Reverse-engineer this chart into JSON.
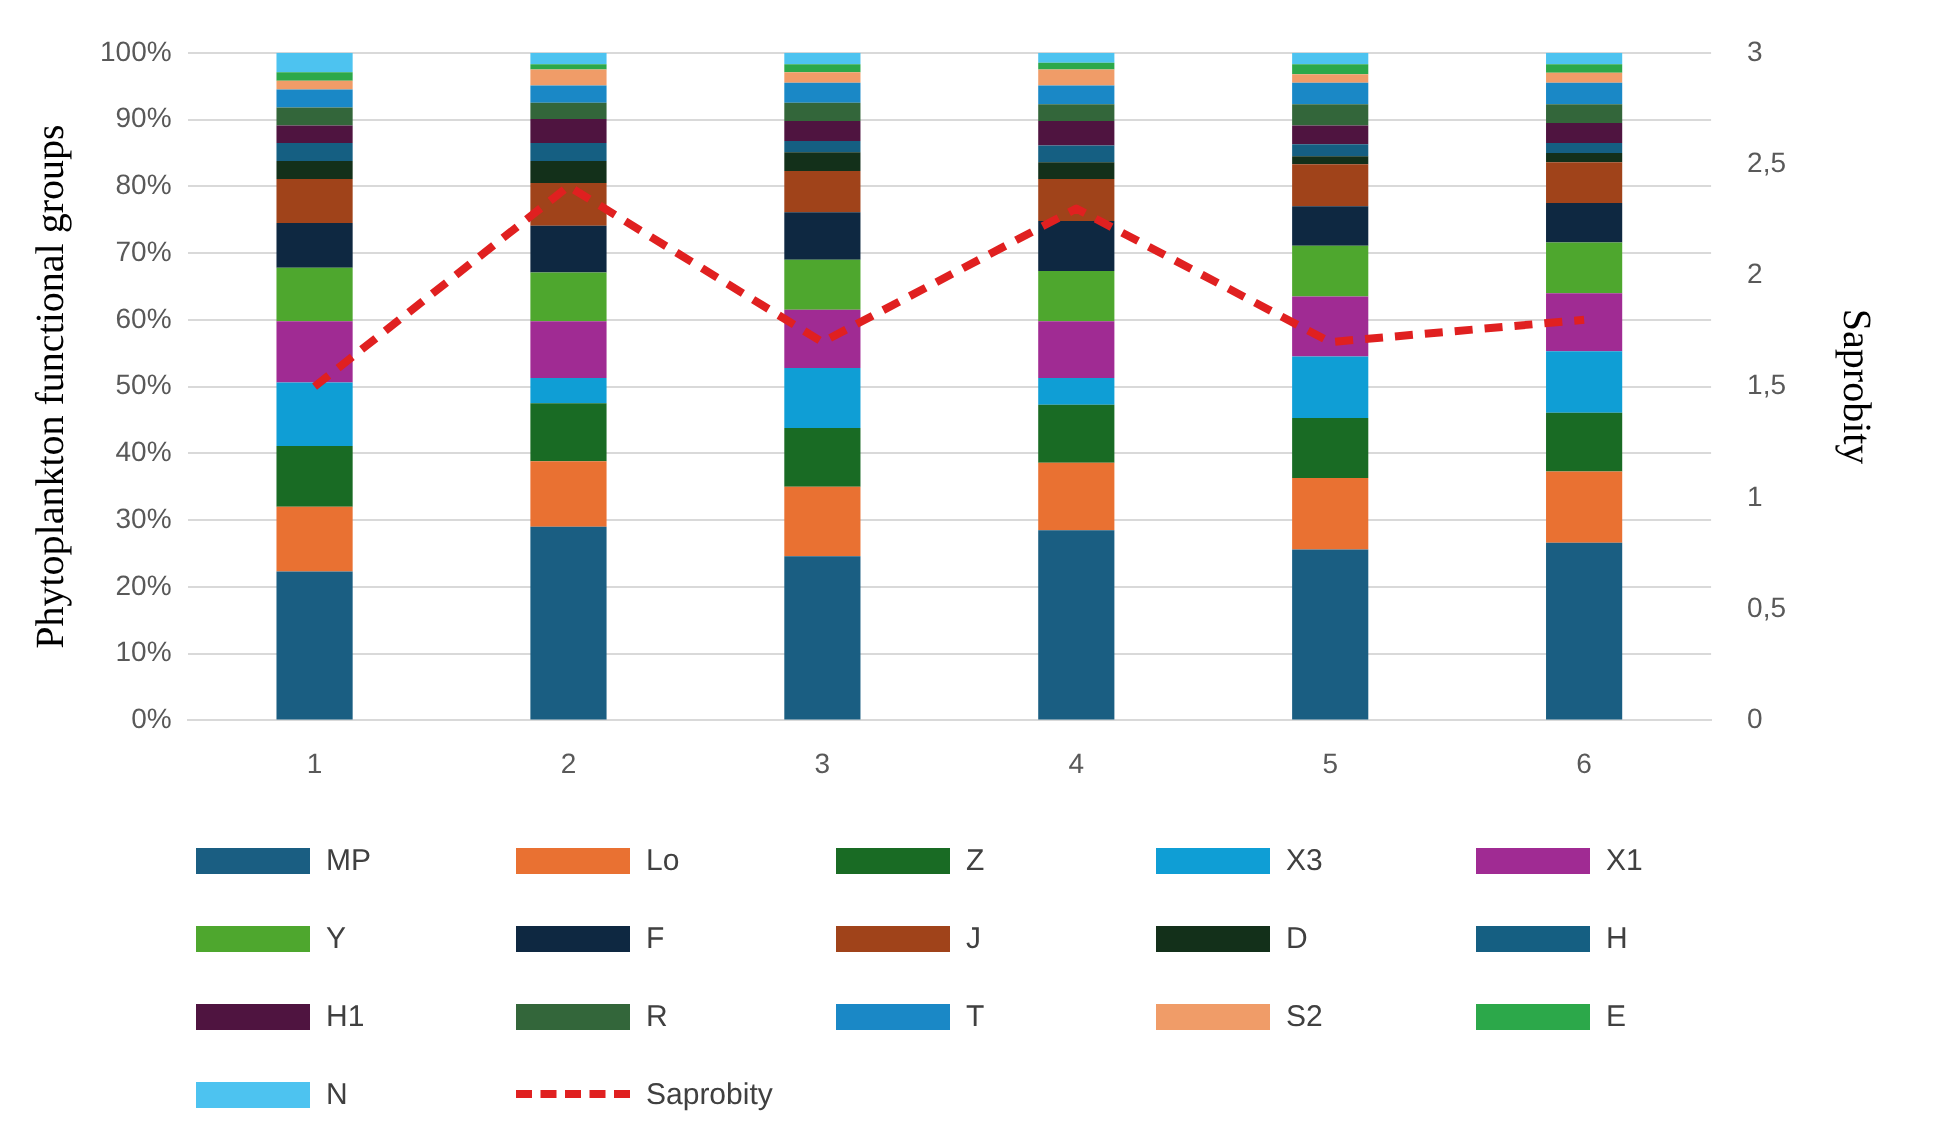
{
  "chart_data": {
    "type": "bar",
    "stacked": true,
    "categories": [
      "1",
      "2",
      "3",
      "4",
      "5",
      "6"
    ],
    "ylabel": "Phytoplankton functional groups",
    "y2label": "Saprobity",
    "ylim": [
      0,
      100
    ],
    "yticks": [
      {
        "value": 0,
        "label": "0%"
      },
      {
        "value": 10,
        "label": "10%"
      },
      {
        "value": 20,
        "label": "20%"
      },
      {
        "value": 30,
        "label": "30%"
      },
      {
        "value": 40,
        "label": "40%"
      },
      {
        "value": 50,
        "label": "50%"
      },
      {
        "value": 60,
        "label": "60%"
      },
      {
        "value": 70,
        "label": "70%"
      },
      {
        "value": 80,
        "label": "80%"
      },
      {
        "value": 90,
        "label": "90%"
      },
      {
        "value": 100,
        "label": "100%"
      }
    ],
    "y2lim": [
      0,
      3
    ],
    "y2ticks": [
      0,
      {
        "value": 0.5,
        "label": "0,5"
      },
      1,
      {
        "value": 1.5,
        "label": "1,5"
      },
      2,
      {
        "value": 2.5,
        "label": "2,5"
      },
      3
    ],
    "grid": "y",
    "legend": "bottom",
    "series": [
      {
        "name": "MP",
        "color": "#1a5e82",
        "values": [
          22.3,
          29,
          24.6,
          28.5,
          25.6,
          26.6
        ]
      },
      {
        "name": "Lo",
        "color": "#e97132",
        "values": [
          9.7,
          9.8,
          10.4,
          10.1,
          10.7,
          10.7
        ]
      },
      {
        "name": "Z",
        "color": "#196b24",
        "values": [
          9.1,
          8.7,
          8.8,
          8.7,
          9,
          8.8
        ]
      },
      {
        "name": "X3",
        "color": "#0f9ed5",
        "values": [
          9.5,
          3.8,
          9,
          4,
          9.2,
          9.2
        ]
      },
      {
        "name": "X1",
        "color": "#a02b93",
        "values": [
          9.2,
          8.5,
          8.7,
          8.5,
          9,
          8.7
        ]
      },
      {
        "name": "Y",
        "color": "#4ea72e",
        "values": [
          8,
          7.3,
          7.5,
          7.5,
          7.6,
          7.6
        ]
      },
      {
        "name": "F",
        "color": "#0e2841",
        "values": [
          6.7,
          7,
          7.1,
          7.5,
          5.9,
          5.9
        ]
      },
      {
        "name": "J",
        "color": "#a0431a",
        "values": [
          6.6,
          6.4,
          6.2,
          6.3,
          6.3,
          6.1
        ]
      },
      {
        "name": "D",
        "color": "#13301a",
        "values": [
          2.7,
          3.3,
          2.8,
          2.5,
          1.2,
          1.4
        ]
      },
      {
        "name": "H",
        "color": "#155f82",
        "values": [
          2.7,
          2.7,
          1.7,
          2.5,
          1.8,
          1.5
        ]
      },
      {
        "name": "H1",
        "color": "#4f1440",
        "values": [
          2.6,
          3.6,
          3,
          3.7,
          2.8,
          3
        ]
      },
      {
        "name": "R",
        "color": "#33663a",
        "values": [
          2.7,
          2.4,
          2.7,
          2.5,
          3.2,
          2.8
        ]
      },
      {
        "name": "T",
        "color": "#1a88c6",
        "values": [
          2.7,
          2.6,
          3,
          2.8,
          3.2,
          3.2
        ]
      },
      {
        "name": "S2",
        "color": "#f09c68",
        "values": [
          1.3,
          2.4,
          1.6,
          2.4,
          1.3,
          1.5
        ]
      },
      {
        "name": "E",
        "color": "#2ca84a",
        "values": [
          1.3,
          0.8,
          1.2,
          1,
          1.5,
          1.3
        ]
      },
      {
        "name": "N",
        "color": "#4dc3f0",
        "values": [
          2.9,
          1.7,
          1.7,
          1.5,
          1.7,
          1.7
        ]
      },
      {
        "name": "Saprobity",
        "type": "line",
        "axis": "y2",
        "color": "#e02020",
        "line_style": "dashed",
        "marker": "none",
        "values": [
          1.5,
          2.4,
          1.7,
          2.3,
          1.7,
          1.8
        ]
      }
    ]
  }
}
